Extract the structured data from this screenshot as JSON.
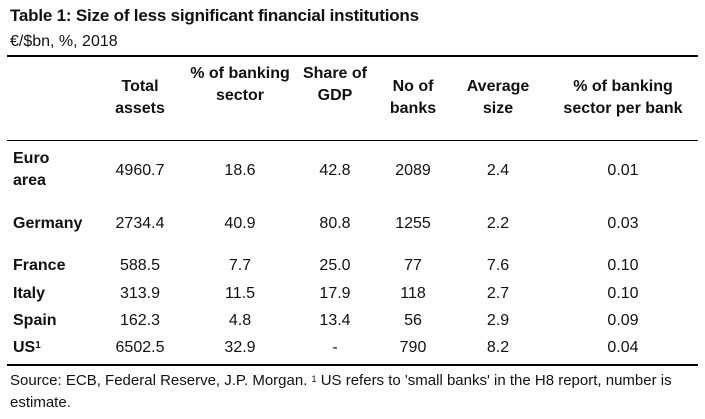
{
  "title": "Table 1: Size of less significant financial institutions",
  "subtitle": "€/$bn, %, 2018",
  "columns": [
    {
      "label": "Total assets"
    },
    {
      "label": "% of banking sector"
    },
    {
      "label": "Share of GDP"
    },
    {
      "label": "No of banks"
    },
    {
      "label": "Average size"
    },
    {
      "label": "% of banking sector per bank"
    }
  ],
  "rows": [
    {
      "label": "Euro area",
      "sup": "",
      "values": [
        "4960.7",
        "18.6",
        "42.8",
        "2089",
        "2.4",
        "0.01"
      ]
    },
    {
      "label": "Germany",
      "sup": "",
      "values": [
        "2734.4",
        "40.9",
        "80.8",
        "1255",
        "2.2",
        "0.03"
      ]
    },
    {
      "label": "France",
      "sup": "",
      "values": [
        "588.5",
        "7.7",
        "25.0",
        "77",
        "7.6",
        "0.10"
      ]
    },
    {
      "label": "Italy",
      "sup": "",
      "values": [
        "313.9",
        "11.5",
        "17.9",
        "118",
        "2.7",
        "0.10"
      ]
    },
    {
      "label": "Spain",
      "sup": "",
      "values": [
        "162.3",
        "4.8",
        "13.4",
        "56",
        "2.9",
        "0.09"
      ]
    },
    {
      "label": "US",
      "sup": "1",
      "values": [
        "6502.5",
        "32.9",
        "-",
        "790",
        "8.2",
        "0.04"
      ]
    }
  ],
  "source": {
    "text": "Source: ECB, Federal Reserve, J.P. Morgan. ",
    "sup": "1",
    "note": " US refers to 'small banks' in the H8 report, number is estimate."
  }
}
